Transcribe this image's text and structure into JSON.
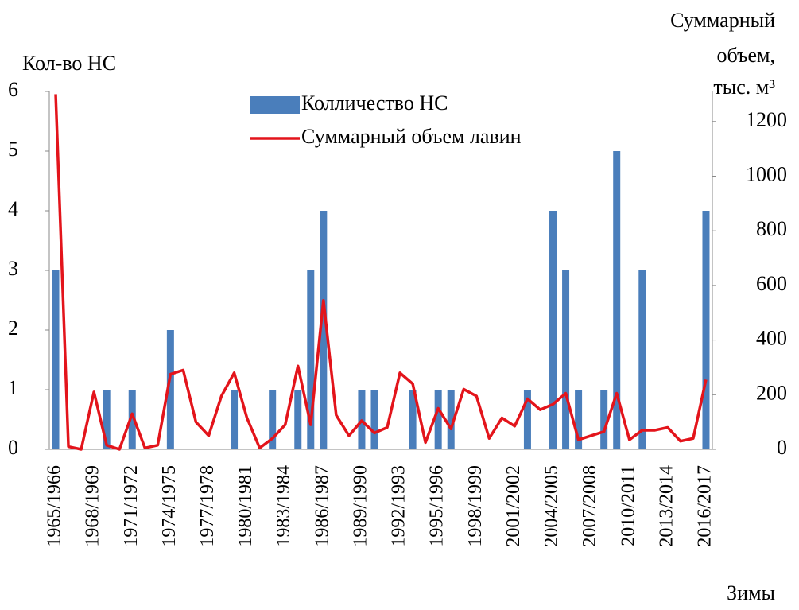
{
  "chart_data": {
    "type": "bar_line",
    "ylabel": "Кол-во НС",
    "y2label": [
      "Суммарный",
      "объем,",
      "тыс. м³"
    ],
    "xlabel": "Зимы",
    "legend": "upper center",
    "categories": [
      "1965/1966",
      null,
      null,
      "1968/1969",
      null,
      null,
      "1971/1972",
      null,
      null,
      "1974/1975",
      null,
      null,
      "1977/1978",
      null,
      null,
      "1980/1981",
      null,
      null,
      "1983/1984",
      null,
      null,
      "1986/1987",
      null,
      null,
      "1989/1990",
      null,
      null,
      "1992/1993",
      null,
      null,
      "1995/1996",
      null,
      null,
      "1998/1999",
      null,
      null,
      "2001/2002",
      null,
      null,
      "2004/2005",
      null,
      null,
      "2007/2008",
      null,
      null,
      "2010/2011",
      null,
      null,
      "2013/2014",
      null,
      null,
      "2016/2017"
    ],
    "series": [
      {
        "name": "Колличество НС",
        "type": "bar",
        "color": "#4a7ebb",
        "values": [
          3,
          0,
          0,
          0,
          1,
          0,
          1,
          0,
          0,
          2,
          0,
          0,
          0,
          0,
          1,
          0,
          0,
          1,
          0,
          1,
          3,
          4,
          0,
          0,
          1,
          1,
          0,
          0,
          1,
          0,
          1,
          1,
          0,
          0,
          0,
          0,
          0,
          1,
          0,
          4,
          3,
          1,
          0,
          1,
          5,
          0,
          3,
          0,
          0,
          0,
          0,
          4
        ]
      },
      {
        "name": "Суммарный объем лавин",
        "type": "line",
        "axis": "y2",
        "color": "#e3141b",
        "values": [
          1300,
          10,
          0,
          210,
          15,
          0,
          130,
          5,
          15,
          275,
          290,
          100,
          50,
          195,
          280,
          115,
          5,
          40,
          90,
          305,
          90,
          545,
          125,
          50,
          105,
          60,
          80,
          280,
          240,
          25,
          150,
          75,
          220,
          195,
          40,
          115,
          85,
          185,
          145,
          165,
          205,
          35,
          50,
          65,
          205,
          35,
          70,
          70,
          80,
          30,
          40,
          255
        ]
      }
    ],
    "ylim": [
      0,
      6
    ],
    "yticks": [
      0,
      1,
      2,
      3,
      4,
      5,
      6
    ],
    "y2lim": [
      0,
      1310
    ],
    "y2ticks": [
      0,
      200,
      400,
      600,
      800,
      1000,
      1200
    ]
  }
}
